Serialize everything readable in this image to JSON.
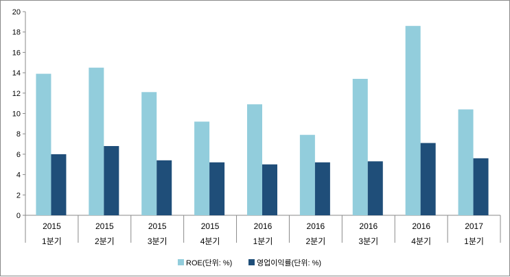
{
  "chart_data": {
    "type": "bar",
    "title": "",
    "xlabel": "",
    "ylabel": "",
    "ylim": [
      0,
      20
    ],
    "yticks": [
      0,
      2,
      4,
      6,
      8,
      10,
      12,
      14,
      16,
      18,
      20
    ],
    "categories": [
      [
        "2015",
        "1분기"
      ],
      [
        "2015",
        "2분기"
      ],
      [
        "2015",
        "3분기"
      ],
      [
        "2015",
        "4분기"
      ],
      [
        "2016",
        "1분기"
      ],
      [
        "2016",
        "2분기"
      ],
      [
        "2016",
        "3분기"
      ],
      [
        "2016",
        "4분기"
      ],
      [
        "2017",
        "1분기"
      ]
    ],
    "series": [
      {
        "name": "ROE(단위: %)",
        "color": "#92CDDC",
        "values": [
          13.9,
          14.5,
          12.1,
          9.2,
          10.9,
          7.9,
          13.4,
          18.6,
          10.4
        ]
      },
      {
        "name": "영업이익률(단위: %)",
        "color": "#1F4E79",
        "values": [
          6.0,
          6.8,
          5.4,
          5.2,
          5.0,
          5.2,
          5.3,
          7.1,
          5.6
        ]
      }
    ],
    "grid": false,
    "legend": "bottom"
  }
}
